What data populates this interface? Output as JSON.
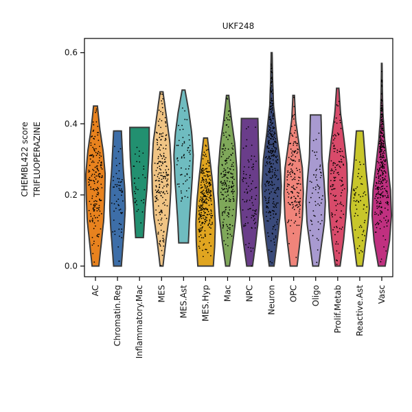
{
  "chart_data": {
    "type": "violin",
    "title": "UKF248",
    "ylabel_lines": [
      "CHEMBL422 score",
      "TRIFLUOPERAZINE"
    ],
    "xlabel": "",
    "ylim": [
      -0.03,
      0.64
    ],
    "yticks": [
      0.0,
      0.2,
      0.4,
      0.6
    ],
    "ytick_labels": [
      "0.0",
      "0.2",
      "0.4",
      "0.6"
    ],
    "grid": false,
    "legend": "none",
    "categories": [
      "AC",
      "Chromatin.Reg",
      "Inflammatory.Mac",
      "MES",
      "MES.Ast",
      "MES.Hyp",
      "Mac",
      "NPC",
      "Neuron",
      "OPC",
      "Oligo",
      "Prolif.Metab",
      "Reactive.Ast",
      "Vasc"
    ],
    "series": [
      {
        "category": "AC",
        "color": "#e8821e",
        "min": 0.0,
        "max": 0.45,
        "median": 0.2,
        "n_points": 180,
        "widths": [
          0.35,
          0.6,
          0.85,
          0.95,
          1.0,
          0.8,
          0.45,
          0.2
        ]
      },
      {
        "category": "Chromatin.Reg",
        "color": "#3d6ea8",
        "min": 0.0,
        "max": 0.38,
        "median": 0.18,
        "n_points": 60,
        "widths": [
          0.4,
          0.55,
          0.7,
          0.8,
          0.75,
          0.6,
          0.5,
          0.4
        ]
      },
      {
        "category": "Inflammatory.Mac",
        "color": "#229070",
        "min": 0.08,
        "max": 0.39,
        "median": 0.28,
        "n_points": 35,
        "widths": [
          0.4,
          0.5,
          0.6,
          0.75,
          0.85,
          0.95,
          1.0,
          1.0
        ]
      },
      {
        "category": "MES",
        "color": "#f0c484",
        "min": 0.0,
        "max": 0.49,
        "median": 0.22,
        "n_points": 200,
        "widths": [
          0.15,
          0.45,
          0.8,
          0.95,
          1.0,
          0.85,
          0.5,
          0.15
        ]
      },
      {
        "category": "MES.Ast",
        "color": "#6fbcc0",
        "min": 0.065,
        "max": 0.495,
        "median": 0.27,
        "n_points": 60,
        "widths": [
          0.5,
          0.6,
          0.75,
          0.9,
          1.0,
          0.85,
          0.55,
          0.15
        ]
      },
      {
        "category": "MES.Hyp",
        "color": "#e0a520",
        "min": 0.0,
        "max": 0.36,
        "median": 0.17,
        "n_points": 260,
        "widths": [
          0.8,
          0.95,
          1.0,
          0.9,
          0.7,
          0.45,
          0.2
        ]
      },
      {
        "category": "Mac",
        "color": "#7fa85a",
        "min": 0.0,
        "max": 0.48,
        "median": 0.22,
        "n_points": 190,
        "widths": [
          0.2,
          0.55,
          0.85,
          1.0,
          0.95,
          0.75,
          0.4,
          0.12
        ]
      },
      {
        "category": "NPC",
        "color": "#6a3d8a",
        "min": 0.0,
        "max": 0.415,
        "median": 0.2,
        "n_points": 90,
        "widths": [
          0.3,
          0.6,
          0.85,
          1.0,
          1.0,
          0.95,
          0.9,
          0.85
        ]
      },
      {
        "category": "Neuron",
        "color": "#3a4a7a",
        "min": 0.0,
        "max": 0.6,
        "median": 0.23,
        "n_points": 300,
        "widths": [
          0.25,
          0.6,
          0.9,
          1.0,
          0.85,
          0.5,
          0.2,
          0.1,
          0.05
        ]
      },
      {
        "category": "OPC",
        "color": "#f0847a",
        "min": 0.0,
        "max": 0.48,
        "median": 0.22,
        "n_points": 160,
        "widths": [
          0.35,
          0.65,
          0.9,
          1.0,
          0.9,
          0.55,
          0.2,
          0.08
        ]
      },
      {
        "category": "Oligo",
        "color": "#a89ad0",
        "min": 0.0,
        "max": 0.425,
        "median": 0.22,
        "n_points": 60,
        "widths": [
          0.3,
          0.6,
          0.9,
          1.0,
          0.85,
          0.65,
          0.6,
          0.55
        ]
      },
      {
        "category": "Prolif.Metab",
        "color": "#d84a6a",
        "min": 0.0,
        "max": 0.5,
        "median": 0.24,
        "n_points": 130,
        "widths": [
          0.25,
          0.6,
          0.85,
          1.0,
          0.95,
          0.65,
          0.3,
          0.12
        ]
      },
      {
        "category": "Reactive.Ast",
        "color": "#c8c62a",
        "min": 0.0,
        "max": 0.38,
        "median": 0.2,
        "n_points": 60,
        "widths": [
          0.3,
          0.55,
          0.8,
          1.0,
          0.85,
          0.65,
          0.5,
          0.35
        ]
      },
      {
        "category": "Vasc",
        "color": "#c03080",
        "min": 0.0,
        "max": 0.57,
        "median": 0.23,
        "n_points": 320,
        "widths": [
          0.35,
          0.8,
          1.0,
          0.9,
          0.6,
          0.3,
          0.12,
          0.06,
          0.03
        ]
      }
    ]
  }
}
